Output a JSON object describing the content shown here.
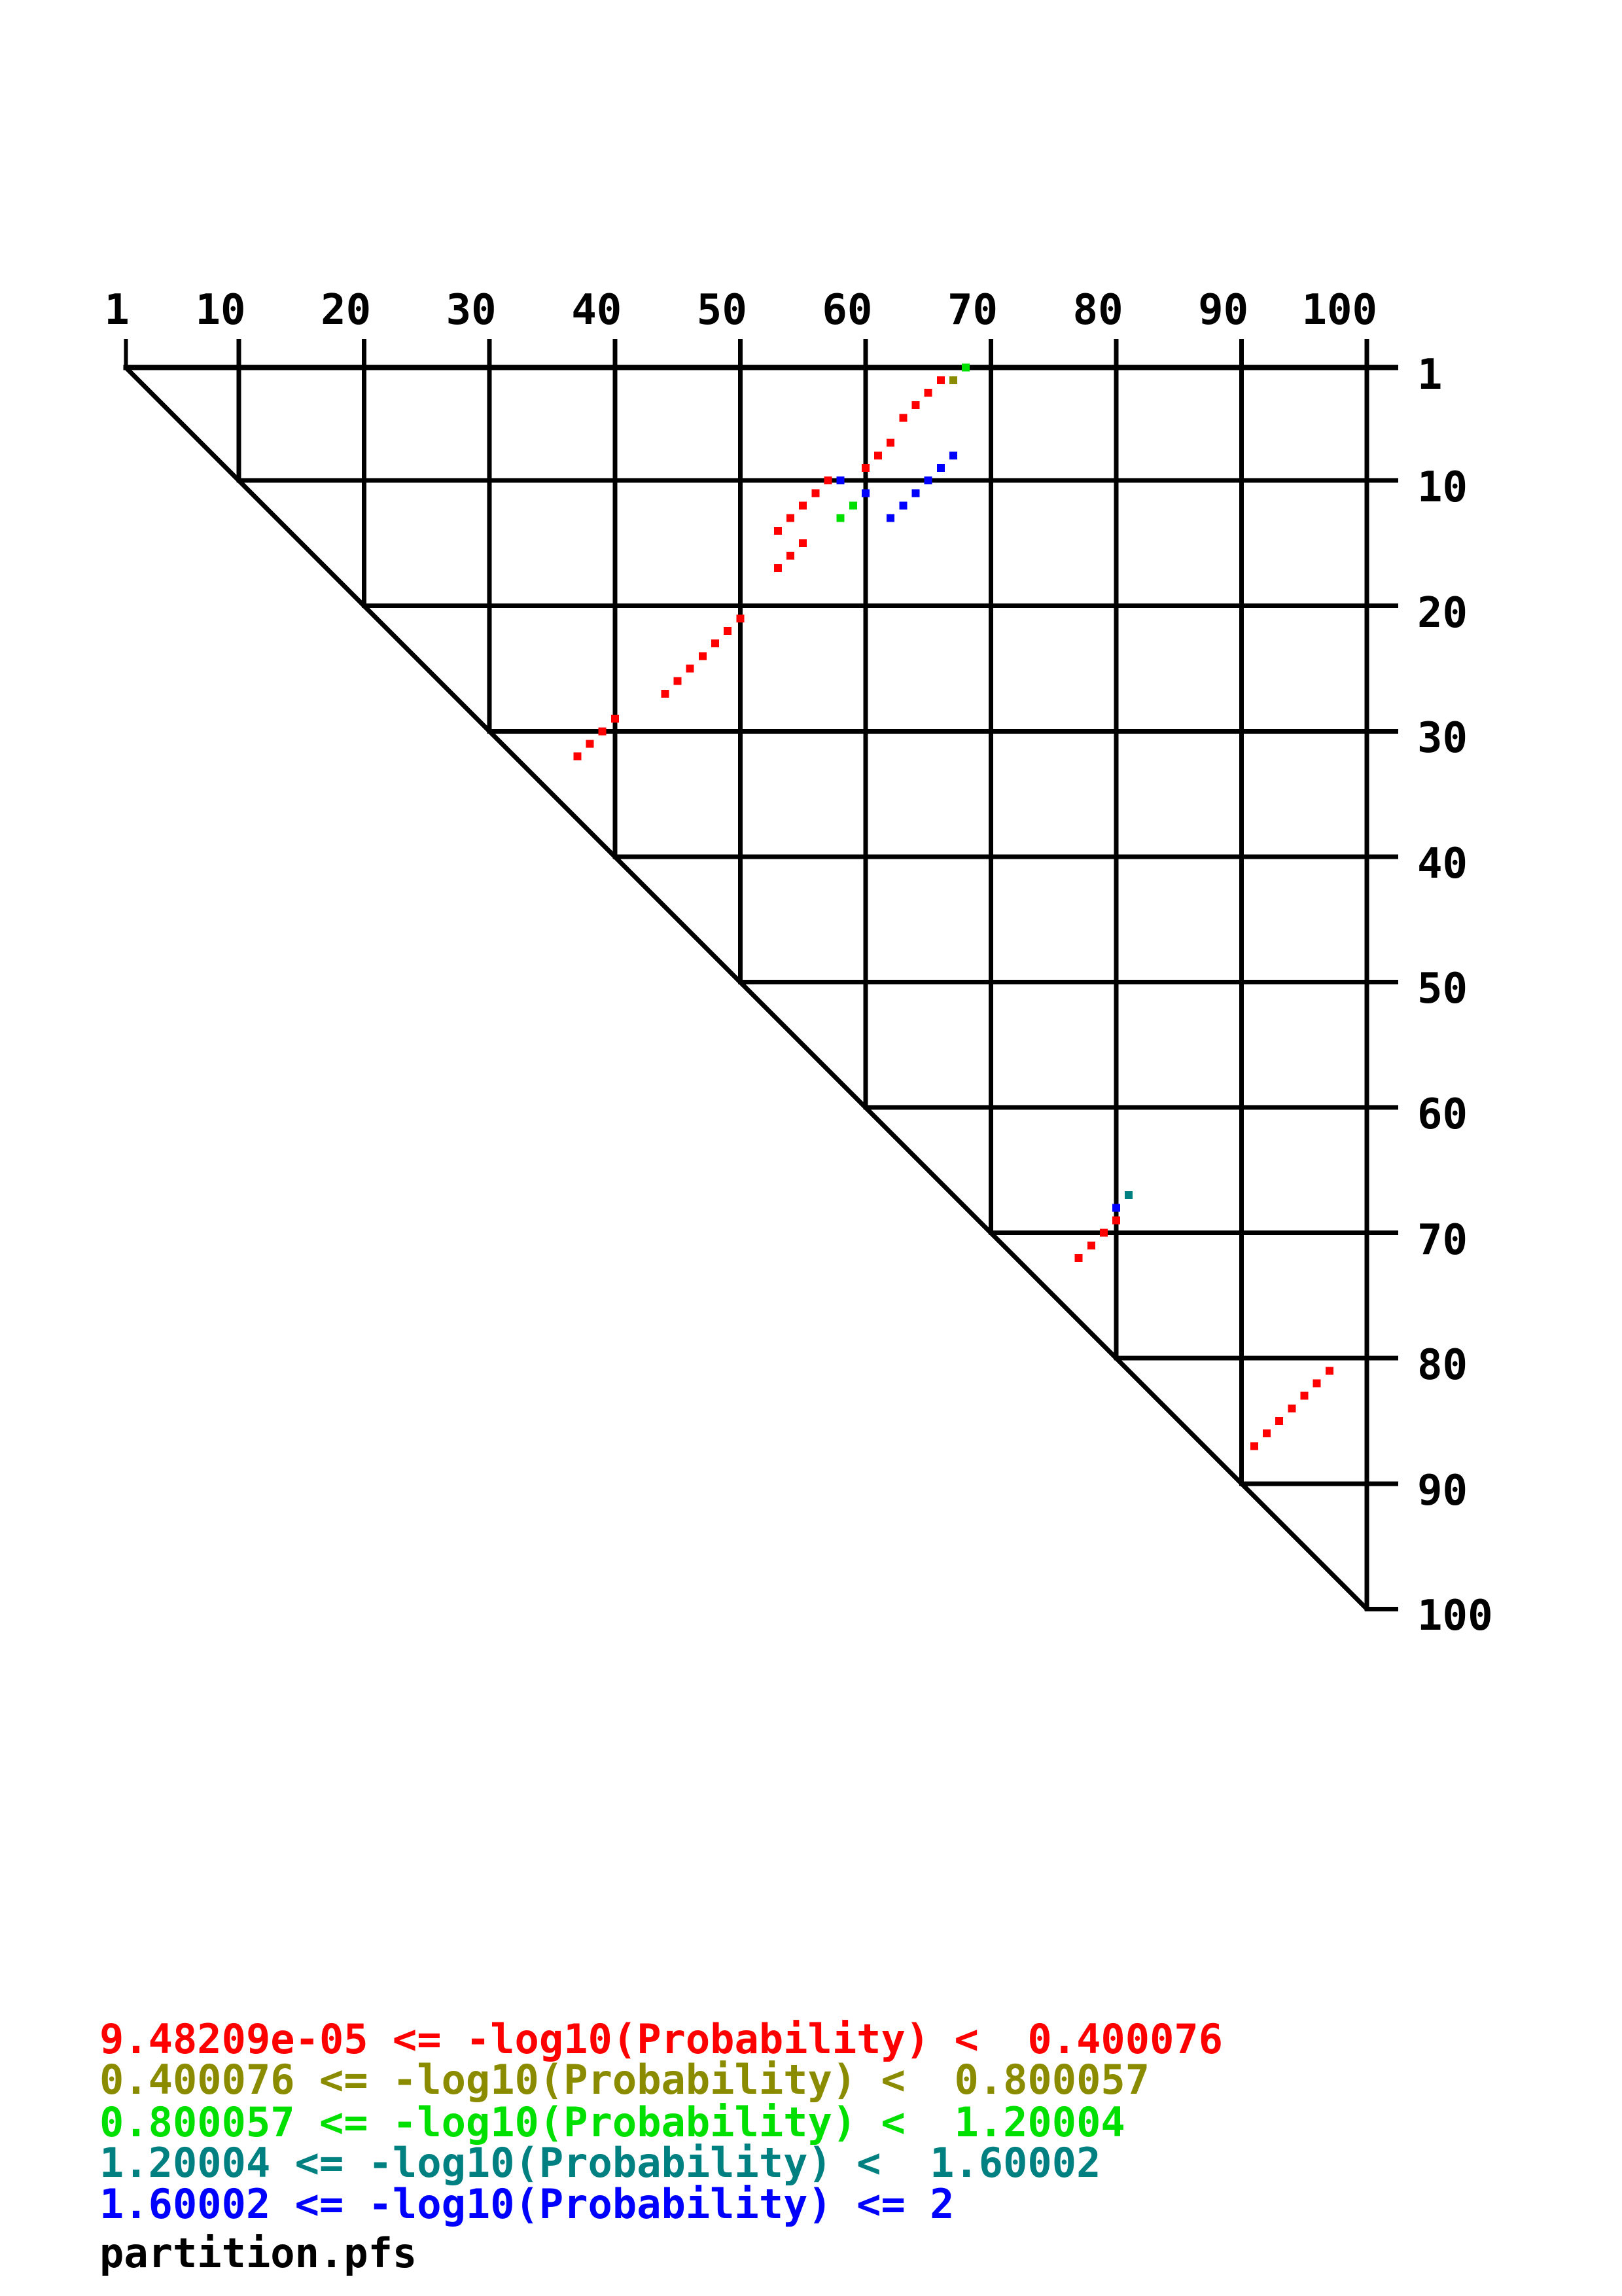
{
  "file_label": "partition.pfs",
  "colors": {
    "red": "#ff0000",
    "olive": "#8b8b00",
    "green": "#00e000",
    "teal": "#008080",
    "blue": "#0000ff",
    "grid": "#000000",
    "background": "#ffffff",
    "text": "#000000"
  },
  "axes": {
    "top_ticks": [
      1,
      10,
      20,
      30,
      40,
      50,
      60,
      70,
      80,
      90,
      100
    ],
    "right_ticks": [
      1,
      10,
      20,
      30,
      40,
      50,
      60,
      70,
      80,
      90,
      100
    ]
  },
  "legend": [
    {
      "text": "9.48209e-05 <= -log10(Probability) <  0.400076",
      "color_key": "red"
    },
    {
      "text": "0.400076 <= -log10(Probability) <  0.800057",
      "color_key": "olive"
    },
    {
      "text": "0.800057 <= -log10(Probability) <  1.20004",
      "color_key": "green"
    },
    {
      "text": "1.20004 <= -log10(Probability) <  1.60002",
      "color_key": "teal"
    },
    {
      "text": "1.60002 <= -log10(Probability) <= 2",
      "color_key": "blue"
    }
  ],
  "chart_data": {
    "type": "scatter",
    "title": "",
    "xlabel": "",
    "ylabel": "",
    "x_range": [
      1,
      100
    ],
    "y_range": [
      1,
      100
    ],
    "y_axis_direction": "downward",
    "grid": "decade lines, upper-right triangle with diagonal",
    "legend_position": "bottom-left text block",
    "series": [
      {
        "name": "9.48209e-05 <= -log10(Probability) <  0.400076",
        "color_key": "red",
        "points": [
          [
            66,
            2
          ],
          [
            65,
            3
          ],
          [
            64,
            4
          ],
          [
            63,
            5
          ],
          [
            62,
            7
          ],
          [
            61,
            8
          ],
          [
            60,
            9
          ],
          [
            57,
            10
          ],
          [
            56,
            11
          ],
          [
            55,
            12
          ],
          [
            54,
            13
          ],
          [
            53,
            14
          ],
          [
            55,
            15
          ],
          [
            54,
            16
          ],
          [
            53,
            17
          ],
          [
            50,
            21
          ],
          [
            49,
            22
          ],
          [
            48,
            23
          ],
          [
            47,
            24
          ],
          [
            46,
            25
          ],
          [
            45,
            26
          ],
          [
            44,
            27
          ],
          [
            40,
            29
          ],
          [
            39,
            30
          ],
          [
            38,
            31
          ],
          [
            37,
            32
          ],
          [
            80,
            69
          ],
          [
            79,
            70
          ],
          [
            78,
            71
          ],
          [
            77,
            72
          ],
          [
            97,
            81
          ],
          [
            96,
            82
          ],
          [
            95,
            83
          ],
          [
            94,
            84
          ],
          [
            93,
            85
          ],
          [
            92,
            86
          ],
          [
            91,
            87
          ]
        ]
      },
      {
        "name": "0.400076 <= -log10(Probability) <  0.800057",
        "color_key": "olive",
        "points": [
          [
            67,
            2
          ]
        ]
      },
      {
        "name": "0.800057 <= -log10(Probability) <  1.20004",
        "color_key": "green",
        "points": [
          [
            68,
            1
          ],
          [
            59,
            12
          ],
          [
            58,
            13
          ]
        ]
      },
      {
        "name": "1.20004 <= -log10(Probability) <  1.60002",
        "color_key": "teal",
        "points": [
          [
            81,
            67
          ]
        ]
      },
      {
        "name": "1.60002 <= -log10(Probability) <= 2",
        "color_key": "blue",
        "points": [
          [
            67,
            8
          ],
          [
            66,
            9
          ],
          [
            65,
            10
          ],
          [
            64,
            11
          ],
          [
            63,
            12
          ],
          [
            62,
            13
          ],
          [
            58,
            10
          ],
          [
            60,
            11
          ],
          [
            80,
            68
          ]
        ]
      }
    ]
  }
}
